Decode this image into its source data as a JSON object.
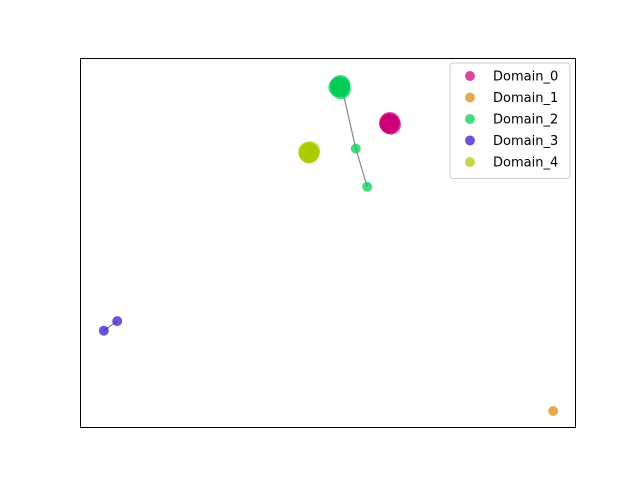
{
  "chart_data": {
    "type": "scatter",
    "title": "",
    "xlabel": "",
    "ylabel": "",
    "xlim": [
      0,
      100
    ],
    "ylim": [
      0,
      100
    ],
    "grid": false,
    "axis_ticks": false,
    "legend_position": "top-right",
    "series": [
      {
        "name": "Domain_0",
        "color": "#cc0077",
        "marker": "circle",
        "points": [
          {
            "x": 62.3,
            "y": 82.4,
            "size": "large"
          },
          {
            "x": 62.5,
            "y": 82.7,
            "size": "large"
          },
          {
            "x": 62.7,
            "y": 82.0,
            "size": "large"
          },
          {
            "x": 62.4,
            "y": 82.2,
            "size": "large"
          }
        ]
      },
      {
        "name": "Domain_1",
        "color": "#dd8811",
        "marker": "circle",
        "points": [
          {
            "x": 95.4,
            "y": 4.6,
            "size": "small"
          }
        ]
      },
      {
        "name": "Domain_2",
        "color": "#00cc55",
        "marker": "circle",
        "points": [
          {
            "x": 52.1,
            "y": 92.1,
            "size": "large"
          },
          {
            "x": 52.5,
            "y": 92.7,
            "size": "large"
          },
          {
            "x": 52.6,
            "y": 91.6,
            "size": "large"
          },
          {
            "x": 52.4,
            "y": 92.3,
            "size": "large"
          },
          {
            "x": 53.0,
            "y": 90.8,
            "size": "small"
          },
          {
            "x": 55.6,
            "y": 75.5,
            "size": "small"
          },
          {
            "x": 57.9,
            "y": 65.2,
            "size": "small"
          }
        ],
        "connector": [
          [
            53.0,
            90.8
          ],
          [
            55.6,
            75.5
          ],
          [
            57.9,
            65.2
          ]
        ]
      },
      {
        "name": "Domain_3",
        "color": "#3311cc",
        "marker": "circle",
        "points": [
          {
            "x": 4.8,
            "y": 26.3,
            "size": "small"
          },
          {
            "x": 7.5,
            "y": 28.9,
            "size": "small"
          }
        ],
        "connector": [
          [
            4.8,
            26.3
          ],
          [
            7.5,
            28.9
          ]
        ]
      },
      {
        "name": "Domain_4",
        "color": "#aacc00",
        "marker": "circle",
        "points": [
          {
            "x": 46.0,
            "y": 74.6,
            "size": "large"
          },
          {
            "x": 46.2,
            "y": 74.2,
            "size": "large"
          },
          {
            "x": 46.4,
            "y": 74.8,
            "size": "large"
          },
          {
            "x": 46.1,
            "y": 74.4,
            "size": "large"
          }
        ]
      }
    ]
  }
}
